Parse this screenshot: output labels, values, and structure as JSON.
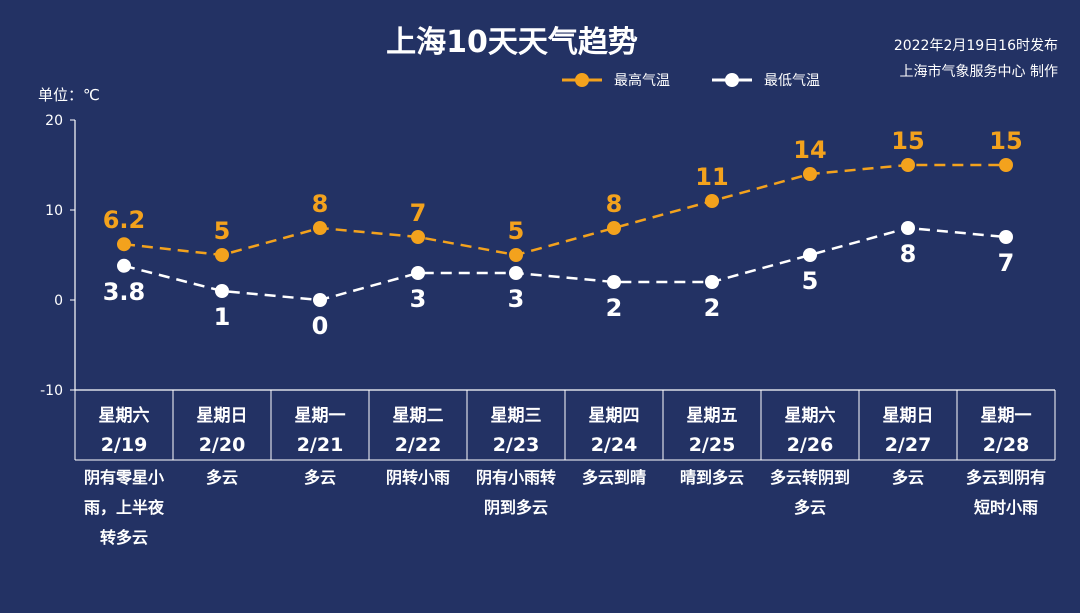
{
  "colors": {
    "background": "#233264",
    "high": "#f3a21d",
    "low": "#ffffff"
  },
  "title": "上海10天天气趋势",
  "publish_time": "2022年2月19日16时发布",
  "publisher": "上海市气象服务中心 制作",
  "unit_label": "单位：℃",
  "legend": {
    "high": "最高气温",
    "low": "最低气温"
  },
  "chart_data": {
    "type": "line",
    "ylim": [
      -10,
      20
    ],
    "y_ticks": [
      "20",
      "10",
      "0",
      "-10"
    ],
    "grid": false,
    "legend_position": "top-center",
    "categories": [
      {
        "weekday": "星期六",
        "date": "2/19",
        "weather": [
          "阴有零星小",
          "雨，上半夜",
          "转多云"
        ]
      },
      {
        "weekday": "星期日",
        "date": "2/20",
        "weather": [
          "多云"
        ]
      },
      {
        "weekday": "星期一",
        "date": "2/21",
        "weather": [
          "多云"
        ]
      },
      {
        "weekday": "星期二",
        "date": "2/22",
        "weather": [
          "阴转小雨"
        ]
      },
      {
        "weekday": "星期三",
        "date": "2/23",
        "weather": [
          "阴有小雨转",
          "阴到多云"
        ]
      },
      {
        "weekday": "星期四",
        "date": "2/24",
        "weather": [
          "多云到晴"
        ]
      },
      {
        "weekday": "星期五",
        "date": "2/25",
        "weather": [
          "晴到多云"
        ]
      },
      {
        "weekday": "星期六",
        "date": "2/26",
        "weather": [
          "多云转阴到",
          "多云"
        ]
      },
      {
        "weekday": "星期日",
        "date": "2/27",
        "weather": [
          "多云"
        ]
      },
      {
        "weekday": "星期一",
        "date": "2/28",
        "weather": [
          "多云到阴有",
          "短时小雨"
        ]
      }
    ],
    "series": [
      {
        "name": "最高气温",
        "values": [
          6.2,
          5,
          8,
          7,
          5,
          8,
          11,
          14,
          15,
          15
        ],
        "labels": [
          "6.2",
          "5",
          "8",
          "7",
          "5",
          "8",
          "11",
          "14",
          "15",
          "15"
        ]
      },
      {
        "name": "最低气温",
        "values": [
          3.8,
          1,
          0,
          3,
          3,
          2,
          2,
          5,
          8,
          7
        ],
        "labels": [
          "3.8",
          "1",
          "0",
          "3",
          "3",
          "2",
          "2",
          "5",
          "8",
          "7"
        ]
      }
    ]
  }
}
